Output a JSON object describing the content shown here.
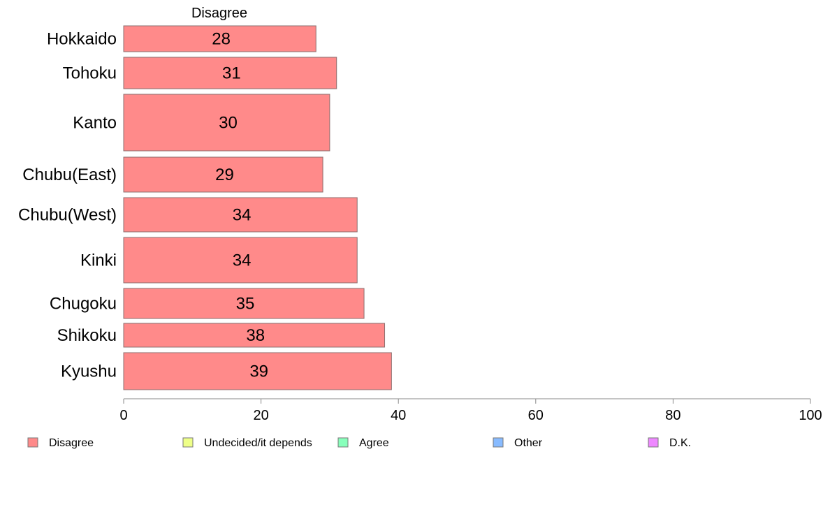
{
  "chart_data": {
    "type": "bar",
    "orientation": "horizontal",
    "title": "Disagree",
    "categories": [
      "Hokkaido",
      "Tohoku",
      "Kanto",
      "Chubu(East)",
      "Chubu(West)",
      "Kinki",
      "Chugoku",
      "Shikoku",
      "Kyushu"
    ],
    "series": [
      {
        "name": "Disagree",
        "color": "#FF8A8A",
        "values": [
          28,
          31,
          30,
          29,
          34,
          34,
          35,
          38,
          39
        ],
        "value_labels": [
          "28",
          "31",
          "30",
          "29",
          "34",
          "34",
          "35",
          "38",
          "39"
        ]
      }
    ],
    "xlim": [
      0,
      100
    ],
    "x_ticks": [
      0,
      20,
      40,
      60,
      80,
      100
    ],
    "grid": false,
    "legend_position": "bottom",
    "legend": [
      {
        "label": "Disagree",
        "color": "#FF8A8A"
      },
      {
        "label": "Undecided/it depends",
        "color": "#EEFF88"
      },
      {
        "label": "Agree",
        "color": "#88FFBB"
      },
      {
        "label": "Other",
        "color": "#88BBFF"
      },
      {
        "label": "D.K.",
        "color": "#EE88FF"
      }
    ]
  }
}
